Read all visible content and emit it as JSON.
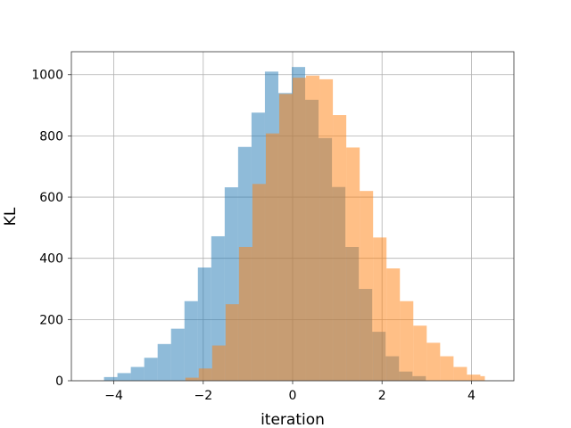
{
  "chart_data": {
    "type": "bar",
    "title": "",
    "xlabel": "iteration",
    "ylabel": "KL",
    "xlim": [
      -4.95,
      4.95
    ],
    "ylim": [
      0,
      1075
    ],
    "grid": true,
    "xticks": [
      -4,
      -2,
      0,
      2,
      4
    ],
    "xtick_labels": [
      "−4",
      "−2",
      "0",
      "2",
      "4"
    ],
    "yticks": [
      0,
      200,
      400,
      600,
      800,
      1000
    ],
    "ytick_labels": [
      "0",
      "200",
      "400",
      "600",
      "800",
      "1000"
    ],
    "colors": {
      "series_1": "#1f77b4",
      "series_2": "#ff7f0e"
    },
    "alpha": 0.5,
    "series": [
      {
        "bins": [
          [
            -4.22,
            -3.92,
            12
          ],
          [
            -3.92,
            -3.62,
            25
          ],
          [
            -3.62,
            -3.32,
            45
          ],
          [
            -3.32,
            -3.02,
            75
          ],
          [
            -3.02,
            -2.72,
            120
          ],
          [
            -2.72,
            -2.42,
            170
          ],
          [
            -2.42,
            -2.12,
            260
          ],
          [
            -2.12,
            -1.82,
            370
          ],
          [
            -1.82,
            -1.52,
            472
          ],
          [
            -1.52,
            -1.22,
            632
          ],
          [
            -1.22,
            -0.92,
            764
          ],
          [
            -0.92,
            -0.62,
            876
          ],
          [
            -0.62,
            -0.32,
            1010
          ],
          [
            -0.32,
            -0.02,
            940
          ],
          [
            -0.02,
            0.28,
            1025
          ],
          [
            0.28,
            0.58,
            918
          ],
          [
            0.58,
            0.88,
            793
          ],
          [
            0.88,
            1.18,
            633
          ],
          [
            1.18,
            1.48,
            437
          ],
          [
            1.48,
            1.78,
            300
          ],
          [
            1.78,
            2.08,
            160
          ],
          [
            2.08,
            2.38,
            80
          ],
          [
            2.38,
            2.68,
            30
          ],
          [
            2.68,
            2.98,
            15
          ]
        ]
      },
      {
        "bins": [
          [
            -2.4,
            -2.1,
            10
          ],
          [
            -2.1,
            -1.8,
            40
          ],
          [
            -1.8,
            -1.5,
            115
          ],
          [
            -1.5,
            -1.2,
            250
          ],
          [
            -1.2,
            -0.9,
            437
          ],
          [
            -0.9,
            -0.6,
            643
          ],
          [
            -0.6,
            -0.3,
            808
          ],
          [
            -0.3,
            0.0,
            937
          ],
          [
            0.0,
            0.3,
            990
          ],
          [
            0.3,
            0.6,
            997
          ],
          [
            0.6,
            0.9,
            985
          ],
          [
            0.9,
            1.2,
            868
          ],
          [
            1.2,
            1.5,
            762
          ],
          [
            1.5,
            1.8,
            620
          ],
          [
            1.8,
            2.1,
            468
          ],
          [
            2.1,
            2.4,
            367
          ],
          [
            2.4,
            2.7,
            260
          ],
          [
            2.7,
            3.0,
            180
          ],
          [
            3.0,
            3.3,
            124
          ],
          [
            3.3,
            3.6,
            80
          ],
          [
            3.6,
            3.9,
            45
          ],
          [
            3.9,
            4.2,
            20
          ],
          [
            4.2,
            4.3,
            15
          ]
        ]
      }
    ]
  }
}
